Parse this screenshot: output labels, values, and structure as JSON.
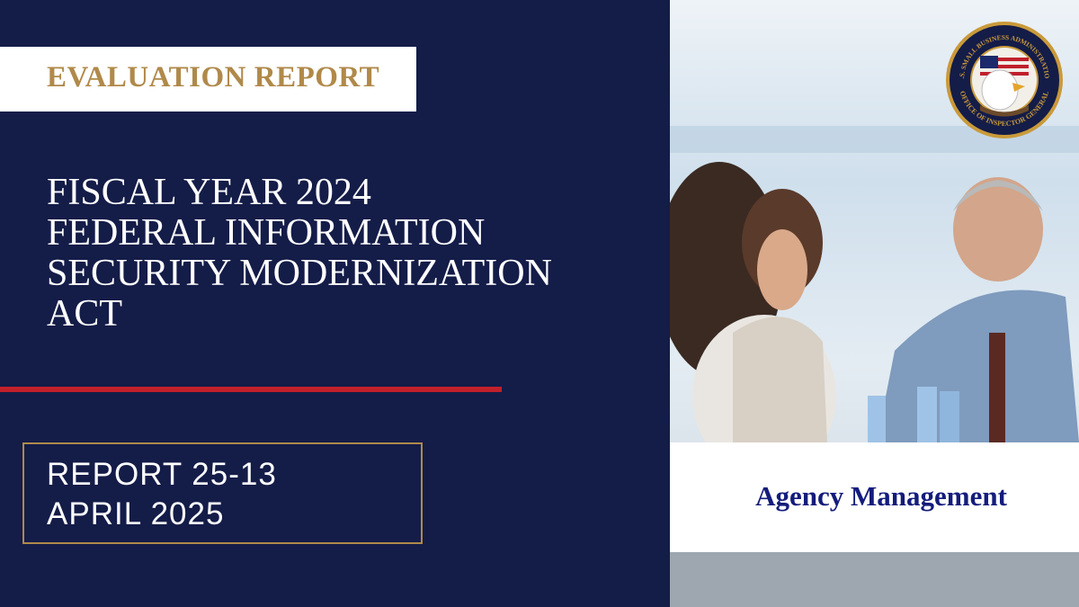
{
  "label": "EVALUATION REPORT",
  "title_lines": [
    "FISCAL YEAR 2024",
    "FEDERAL INFORMATION",
    "SECURITY MODERNIZATION",
    "ACT"
  ],
  "report_number": "REPORT 25-13",
  "report_date": "APRIL 2025",
  "category": "Agency Management",
  "seal": {
    "top_text": "U.S. SMALL BUSINESS ADMINISTRATION",
    "bottom_text": "OFFICE OF INSPECTOR GENERAL"
  }
}
